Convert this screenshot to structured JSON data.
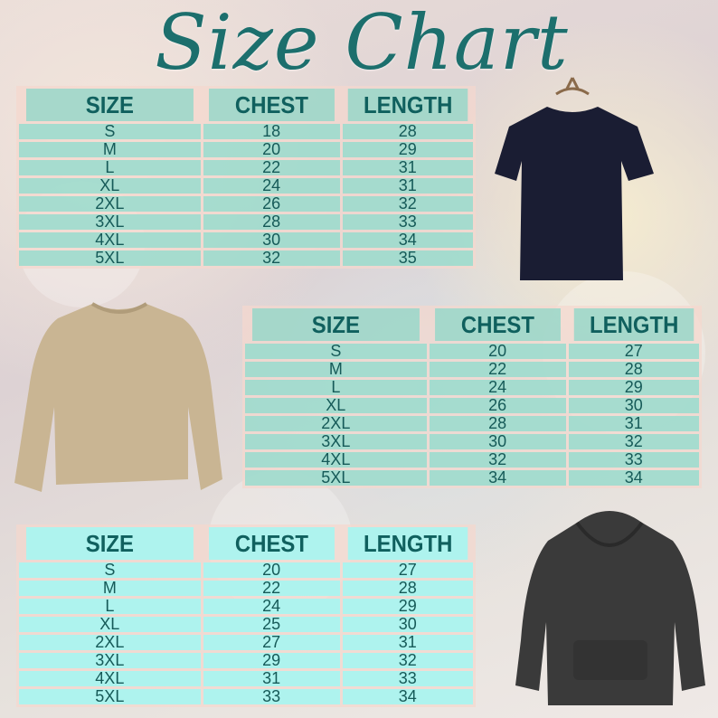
{
  "title": "Size Chart",
  "colors": {
    "title": "#1c6f6d",
    "table_cell": "#8cdccd",
    "table_text": "#165a58"
  },
  "tables": [
    {
      "garment": "t-shirt",
      "headers": [
        "SIZE",
        "CHEST",
        "LENGTH"
      ],
      "rows": [
        [
          "S",
          "18",
          "28"
        ],
        [
          "M",
          "20",
          "29"
        ],
        [
          "L",
          "22",
          "31"
        ],
        [
          "XL",
          "24",
          "31"
        ],
        [
          "2XL",
          "26",
          "32"
        ],
        [
          "3XL",
          "28",
          "33"
        ],
        [
          "4XL",
          "30",
          "34"
        ],
        [
          "5XL",
          "32",
          "35"
        ]
      ]
    },
    {
      "garment": "sweatshirt",
      "headers": [
        "SIZE",
        "CHEST",
        "LENGTH"
      ],
      "rows": [
        [
          "S",
          "20",
          "27"
        ],
        [
          "M",
          "22",
          "28"
        ],
        [
          "L",
          "24",
          "29"
        ],
        [
          "XL",
          "26",
          "30"
        ],
        [
          "2XL",
          "28",
          "31"
        ],
        [
          "3XL",
          "30",
          "32"
        ],
        [
          "4XL",
          "32",
          "33"
        ],
        [
          "5XL",
          "34",
          "34"
        ]
      ]
    },
    {
      "garment": "hoodie",
      "headers": [
        "SIZE",
        "CHEST",
        "LENGTH"
      ],
      "rows": [
        [
          "S",
          "20",
          "27"
        ],
        [
          "M",
          "22",
          "28"
        ],
        [
          "L",
          "24",
          "29"
        ],
        [
          "XL",
          "25",
          "30"
        ],
        [
          "2XL",
          "27",
          "31"
        ],
        [
          "3XL",
          "29",
          "32"
        ],
        [
          "4XL",
          "31",
          "33"
        ],
        [
          "5XL",
          "33",
          "34"
        ]
      ]
    }
  ]
}
